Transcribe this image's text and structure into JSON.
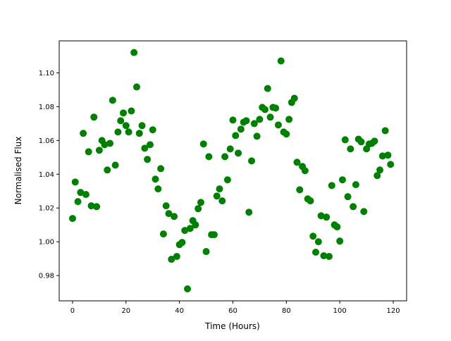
{
  "chart_data": {
    "type": "scatter",
    "title": "",
    "xlabel": "Time (Hours)",
    "ylabel": "Normalised Flux",
    "xlim": [
      -5,
      125
    ],
    "ylim": [
      0.965,
      1.119
    ],
    "xticks": [
      0,
      20,
      40,
      60,
      80,
      100,
      120
    ],
    "yticks": [
      "0.98",
      "1.00",
      "1.02",
      "1.04",
      "1.06",
      "1.08",
      "1.10"
    ],
    "grid": false,
    "marker_color": "#008000",
    "x": [
      0,
      1,
      2,
      3,
      4,
      5,
      6,
      7,
      8,
      9,
      10,
      11,
      12,
      13,
      14,
      15,
      16,
      17,
      18,
      19,
      20,
      21,
      22,
      23,
      24,
      25,
      26,
      27,
      28,
      29,
      30,
      31,
      32,
      33,
      34,
      35,
      36,
      37,
      38,
      39,
      40,
      41,
      42,
      43,
      44,
      45,
      46,
      47,
      48,
      49,
      50,
      51,
      52,
      53,
      54,
      55,
      56,
      57,
      58,
      59,
      60,
      61,
      62,
      63,
      64,
      65,
      66,
      67,
      68,
      69,
      70,
      71,
      72,
      73,
      74,
      75,
      76,
      77,
      78,
      79,
      80,
      81,
      82,
      83,
      84,
      85,
      86,
      87,
      88,
      89,
      90,
      91,
      92,
      93,
      94,
      95,
      96,
      97,
      98,
      99,
      100,
      101,
      102,
      103,
      104,
      105,
      106,
      107,
      108,
      109,
      110,
      111,
      112,
      113,
      114,
      115,
      116,
      117,
      118,
      119
    ],
    "y": [
      1.0138,
      1.0354,
      1.0238,
      1.0292,
      1.0642,
      1.028,
      1.0533,
      1.0213,
      1.0738,
      1.0208,
      1.0542,
      1.06,
      1.0575,
      1.0425,
      1.0583,
      1.0838,
      1.0454,
      1.065,
      1.0717,
      1.0763,
      1.0688,
      1.065,
      1.0775,
      1.1121,
      1.0917,
      1.0642,
      1.0688,
      1.0554,
      1.0488,
      1.0575,
      1.0663,
      1.0371,
      1.0313,
      1.0433,
      1.0046,
      1.0213,
      1.0167,
      0.9896,
      1.015,
      0.9913,
      0.9983,
      0.9996,
      1.0067,
      0.9721,
      1.0079,
      1.0125,
      1.01,
      1.0196,
      1.0233,
      1.0579,
      0.9942,
      1.0504,
      1.0042,
      1.0042,
      1.0271,
      1.0313,
      1.0242,
      1.0504,
      1.0367,
      1.055,
      1.0721,
      1.0629,
      1.0525,
      1.0667,
      1.0708,
      1.0717,
      1.0175,
      1.0479,
      1.07,
      1.0625,
      1.0725,
      1.0796,
      1.0783,
      1.0908,
      1.0738,
      1.0796,
      1.0792,
      1.0692,
      1.1071,
      1.065,
      1.0638,
      1.0725,
      1.0825,
      1.085,
      1.0471,
      1.0308,
      1.0446,
      1.0421,
      1.0254,
      1.0242,
      1.0033,
      0.9938,
      1.0,
      1.0154,
      0.9917,
      1.0146,
      0.9913,
      1.0333,
      1.01,
      1.0088,
      1.0004,
      1.0367,
      1.0604,
      1.0267,
      1.055,
      1.0208,
      1.0338,
      1.0608,
      1.0592,
      1.0179,
      1.055,
      1.0579,
      1.0583,
      1.0596,
      1.0392,
      1.0425,
      1.0508,
      1.0658,
      1.0513,
      1.0458
    ]
  }
}
